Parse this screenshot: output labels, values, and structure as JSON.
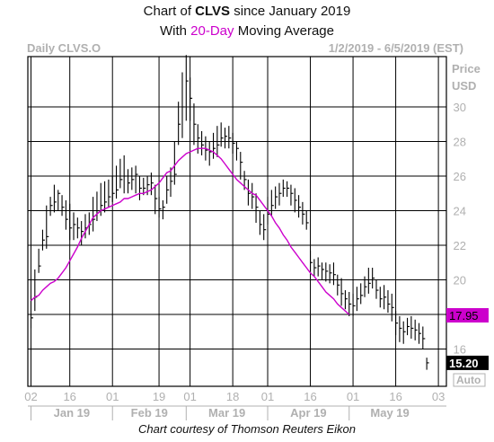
{
  "title": {
    "line1": {
      "prefix": "Chart of ",
      "ticker": "CLVS",
      "suffix": " since January 2019"
    },
    "line2": {
      "prefix": "With ",
      "period": "20-Day",
      "suffix": " Moving Average"
    }
  },
  "header": {
    "left": "Daily CLVS.O",
    "right": "1/2/2019 - 6/5/2019 (EST)"
  },
  "caption": "Chart courtesy of Thomson Reuters Eikon",
  "colors": {
    "grid": "#000000",
    "bars": "#000000",
    "ma": "#cc00cc",
    "ma_tag": "#cc00cc",
    "price_tag": "#000000",
    "axis_text": "#b0b0b0"
  },
  "chart_data": {
    "type": "ohlc",
    "y_axis_label": [
      "Price",
      "USD"
    ],
    "ylim": [
      14,
      34
    ],
    "y_ticks": [
      16,
      18,
      20,
      22,
      24,
      26,
      28,
      30
    ],
    "x_ticks": [
      {
        "label": "02",
        "day": 0
      },
      {
        "label": "16",
        "day": 10
      },
      {
        "label": "01",
        "day": 21
      },
      {
        "label": "19",
        "day": 33
      },
      {
        "label": "01",
        "day": 41
      },
      {
        "label": "18",
        "day": 52
      },
      {
        "label": "01",
        "day": 61
      },
      {
        "label": "16",
        "day": 72
      },
      {
        "label": "01",
        "day": 83
      },
      {
        "label": "16",
        "day": 94
      },
      {
        "label": "03",
        "day": 105
      }
    ],
    "months": [
      {
        "label": "Jan 19",
        "start_day": 0,
        "end_day": 21
      },
      {
        "label": "Feb 19",
        "start_day": 21,
        "end_day": 40
      },
      {
        "label": "Mar 19",
        "start_day": 40,
        "end_day": 61
      },
      {
        "label": "Apr 19",
        "start_day": 61,
        "end_day": 82
      },
      {
        "label": "May 19",
        "start_day": 82,
        "end_day": 103
      }
    ],
    "series": [
      {
        "name": "CLVS",
        "style": "ohlc-bars",
        "close": [
          17.8,
          19.0,
          20.8,
          22.3,
          22.5,
          24.3,
          24.5,
          25.0,
          24.2,
          23.5,
          23.0,
          23.2,
          23.0,
          22.8,
          23.0,
          23.2,
          23.5,
          24.0,
          24.3,
          24.5,
          24.8,
          25.0,
          25.2,
          25.8,
          26.0,
          25.6,
          25.8,
          26.1,
          25.3,
          25.3,
          25.5,
          25.6,
          24.7,
          24.1,
          24.2,
          25.2,
          25.7,
          26.1,
          29.0,
          30.0,
          31.5,
          30.5,
          29.0,
          28.2,
          27.8,
          27.5,
          27.4,
          27.6,
          27.8,
          28.2,
          28.3,
          28.2,
          27.9,
          27.6,
          26.8,
          25.8,
          25.0,
          24.8,
          24.2,
          23.2,
          22.9,
          23.8,
          24.3,
          24.8,
          25.0,
          25.3,
          25.3,
          25.0,
          24.6,
          24.2,
          23.8,
          23.3,
          21.0,
          20.7,
          20.8,
          20.6,
          20.5,
          20.4,
          20.3,
          19.7,
          19.2,
          18.9,
          18.6,
          18.5,
          18.9,
          19.1,
          19.6,
          19.8,
          20.1,
          19.4,
          18.9,
          19.0,
          18.6,
          18.4,
          17.5,
          17.2,
          17.0,
          17.3,
          17.2,
          17.1,
          16.9,
          16.6,
          15.2
        ],
        "high": [
          19.1,
          20.6,
          21.8,
          22.9,
          24.3,
          24.8,
          25.5,
          25.2,
          24.9,
          24.6,
          24.4,
          23.9,
          23.6,
          23.4,
          23.8,
          23.9,
          24.8,
          25.1,
          25.6,
          25.7,
          25.8,
          26.0,
          26.6,
          27.0,
          27.2,
          26.4,
          26.5,
          26.6,
          26.0,
          25.9,
          26.0,
          26.2,
          25.5,
          24.8,
          24.6,
          26.0,
          26.5,
          28.0,
          30.3,
          32.0,
          33.0,
          31.7,
          30.2,
          29.0,
          28.6,
          28.3,
          28.0,
          28.5,
          28.9,
          29.1,
          28.8,
          28.9,
          28.5,
          28.0,
          27.4,
          26.3,
          25.8,
          25.6,
          25.0,
          24.0,
          23.8,
          24.8,
          25.2,
          25.4,
          25.6,
          25.8,
          25.7,
          25.5,
          25.3,
          24.9,
          24.5,
          24.0,
          21.7,
          21.2,
          21.3,
          21.0,
          21.0,
          20.9,
          21.0,
          20.3,
          20.1,
          19.4,
          19.3,
          19.2,
          19.6,
          19.8,
          20.2,
          20.7,
          20.7,
          20.0,
          19.6,
          19.7,
          19.4,
          19.2,
          18.2,
          17.9,
          17.6,
          17.8,
          17.9,
          17.7,
          17.5,
          17.3,
          15.5
        ],
        "low": [
          17.2,
          18.2,
          20.4,
          21.7,
          21.8,
          23.7,
          23.9,
          24.0,
          23.7,
          22.9,
          22.3,
          22.3,
          22.4,
          22.0,
          22.4,
          22.6,
          22.8,
          23.4,
          23.7,
          23.9,
          24.2,
          24.5,
          24.7,
          25.3,
          25.0,
          25.0,
          25.2,
          25.0,
          24.6,
          24.9,
          24.9,
          24.9,
          23.8,
          23.6,
          23.5,
          24.4,
          24.8,
          25.5,
          27.8,
          28.2,
          29.2,
          29.2,
          27.8,
          27.3,
          27.2,
          26.9,
          26.6,
          27.0,
          27.1,
          27.7,
          27.6,
          27.6,
          27.3,
          26.9,
          25.8,
          25.2,
          24.3,
          24.1,
          23.3,
          22.6,
          22.3,
          23.2,
          23.7,
          24.1,
          24.3,
          24.8,
          24.8,
          24.3,
          23.9,
          23.6,
          23.2,
          22.9,
          20.4,
          20.2,
          20.2,
          20.0,
          19.9,
          19.8,
          19.7,
          19.1,
          18.5,
          18.3,
          17.9,
          17.9,
          18.2,
          18.6,
          19.0,
          19.2,
          19.5,
          18.9,
          18.4,
          18.3,
          18.1,
          17.6,
          16.8,
          16.4,
          16.3,
          16.8,
          16.6,
          16.5,
          16.3,
          16.0,
          14.8
        ]
      },
      {
        "name": "20-Day Moving Average",
        "style": "line",
        "start_day": 0,
        "values": [
          18.8,
          19.0,
          19.1,
          19.4,
          19.6,
          19.8,
          19.9,
          20.1,
          20.4,
          20.7,
          21.1,
          21.5,
          21.9,
          22.4,
          22.8,
          23.2,
          23.6,
          23.8,
          24.0,
          24.1,
          24.2,
          24.3,
          24.4,
          24.5,
          24.7,
          24.7,
          24.8,
          24.9,
          25.0,
          25.0,
          25.1,
          25.2,
          25.4,
          25.6,
          25.9,
          26.2,
          26.3,
          26.6,
          26.9,
          27.1,
          27.3,
          27.4,
          27.5,
          27.6,
          27.6,
          27.6,
          27.5,
          27.4,
          27.2,
          27.0,
          26.7,
          26.4,
          26.1,
          25.8,
          25.6,
          25.4,
          25.2,
          25.0,
          24.9,
          24.6,
          24.3,
          24.0,
          23.7,
          23.3,
          23.0,
          22.6,
          22.3,
          21.9,
          21.6,
          21.3,
          21.0,
          20.7,
          20.4,
          20.2,
          19.9,
          19.6,
          19.3,
          19.1,
          18.9,
          18.6,
          18.4,
          18.2,
          18.0
        ]
      }
    ],
    "last_values": {
      "ma": "17.95",
      "price": "15.20"
    },
    "auto_label": "Auto"
  }
}
